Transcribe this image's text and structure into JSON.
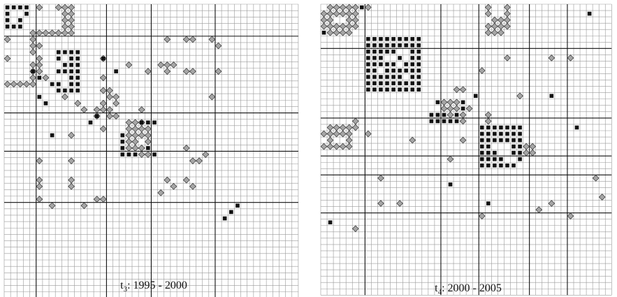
{
  "panels": [
    {
      "id": "t3",
      "label_main": "t",
      "label_sub": "3",
      "label_period": ": 1995 - 2000",
      "squares": [
        [
          0,
          0
        ],
        [
          0,
          1
        ],
        [
          0,
          2
        ],
        [
          0,
          3
        ],
        [
          1,
          0
        ],
        [
          1,
          3
        ],
        [
          2,
          0
        ],
        [
          2,
          2
        ],
        [
          3,
          0
        ],
        [
          3,
          1
        ],
        [
          3,
          2
        ],
        [
          7,
          8
        ],
        [
          7,
          9
        ],
        [
          7,
          10
        ],
        [
          7,
          11
        ],
        [
          8,
          8
        ],
        [
          8,
          10
        ],
        [
          8,
          11
        ],
        [
          9,
          9
        ],
        [
          9,
          10
        ],
        [
          9,
          11
        ],
        [
          10,
          8
        ],
        [
          10,
          9
        ],
        [
          10,
          10
        ],
        [
          10,
          11
        ],
        [
          11,
          10
        ],
        [
          11,
          11
        ],
        [
          12,
          8
        ],
        [
          12,
          10
        ],
        [
          12,
          11
        ],
        [
          13,
          8
        ],
        [
          13,
          9
        ],
        [
          13,
          10
        ],
        [
          13,
          11
        ],
        [
          10,
          4
        ],
        [
          11,
          5
        ],
        [
          12,
          7
        ],
        [
          14,
          5
        ],
        [
          15,
          6
        ],
        [
          18,
          21
        ],
        [
          18,
          22
        ],
        [
          18,
          23
        ],
        [
          20,
          18
        ],
        [
          21,
          18
        ],
        [
          22,
          18
        ],
        [
          23,
          18
        ],
        [
          23,
          19
        ],
        [
          23,
          20
        ],
        [
          22,
          22
        ],
        [
          23,
          23
        ],
        [
          31,
          36
        ],
        [
          32,
          35
        ],
        [
          33,
          34
        ],
        [
          10,
          17
        ],
        [
          17,
          14
        ],
        [
          18,
          13
        ],
        [
          20,
          7
        ],
        [
          8,
          15
        ]
      ],
      "diamonds": [
        [
          0,
          9
        ],
        [
          0,
          10
        ],
        [
          1,
          9
        ],
        [
          1,
          10
        ],
        [
          2,
          9
        ],
        [
          2,
          10
        ],
        [
          3,
          9
        ],
        [
          3,
          10
        ],
        [
          0,
          5
        ],
        [
          0,
          8
        ],
        [
          4,
          4
        ],
        [
          4,
          5
        ],
        [
          4,
          6
        ],
        [
          4,
          7
        ],
        [
          4,
          8
        ],
        [
          4,
          9
        ],
        [
          4,
          10
        ],
        [
          5,
          0
        ],
        [
          5,
          4
        ],
        [
          6,
          4
        ],
        [
          6,
          5
        ],
        [
          7,
          4
        ],
        [
          8,
          5
        ],
        [
          9,
          4
        ],
        [
          9,
          5
        ],
        [
          10,
          4
        ],
        [
          10,
          5
        ],
        [
          11,
          4
        ],
        [
          8,
          0
        ],
        [
          8,
          15
        ],
        [
          9,
          19
        ],
        [
          10,
          22
        ],
        [
          5,
          25
        ],
        [
          5,
          28
        ],
        [
          5,
          29
        ],
        [
          5,
          32
        ],
        [
          6,
          33
        ],
        [
          9,
          24
        ],
        [
          9,
          25
        ],
        [
          9,
          26
        ],
        [
          10,
          25
        ],
        [
          12,
          0
        ],
        [
          12,
          1
        ],
        [
          12,
          2
        ],
        [
          12,
          3
        ],
        [
          12,
          4
        ],
        [
          11,
          6
        ],
        [
          11,
          15
        ],
        [
          10,
          33
        ],
        [
          10,
          28
        ],
        [
          10,
          29
        ],
        [
          13,
          15
        ],
        [
          13,
          16
        ],
        [
          14,
          16
        ],
        [
          14,
          17
        ],
        [
          15,
          15
        ],
        [
          15,
          17
        ],
        [
          16,
          14
        ],
        [
          16,
          15
        ],
        [
          17,
          14
        ],
        [
          16,
          16
        ],
        [
          17,
          16
        ],
        [
          17,
          17
        ],
        [
          14,
          9
        ],
        [
          15,
          11
        ],
        [
          16,
          12
        ],
        [
          16,
          21
        ],
        [
          14,
          32
        ],
        [
          18,
          19
        ],
        [
          18,
          20
        ],
        [
          18,
          21
        ],
        [
          19,
          19
        ],
        [
          19,
          20
        ],
        [
          19,
          21
        ],
        [
          19,
          22
        ],
        [
          20,
          19
        ],
        [
          20,
          20
        ],
        [
          20,
          21
        ],
        [
          20,
          22
        ],
        [
          21,
          19
        ],
        [
          21,
          20
        ],
        [
          21,
          22
        ],
        [
          22,
          19
        ],
        [
          22,
          20
        ],
        [
          22,
          21
        ],
        [
          23,
          21
        ],
        [
          23,
          22
        ],
        [
          19,
          15
        ],
        [
          20,
          10
        ],
        [
          22,
          28
        ],
        [
          23,
          31
        ],
        [
          24,
          29
        ],
        [
          24,
          30
        ],
        [
          24,
          5
        ],
        [
          24,
          10
        ],
        [
          27,
          5
        ],
        [
          28,
          5
        ],
        [
          28,
          10
        ],
        [
          27,
          10
        ],
        [
          27,
          25
        ],
        [
          28,
          26
        ],
        [
          29,
          24
        ],
        [
          27,
          28
        ],
        [
          28,
          29
        ],
        [
          30,
          5
        ],
        [
          31,
          7
        ],
        [
          31,
          12
        ],
        [
          30,
          14
        ],
        [
          30,
          15
        ]
      ]
    },
    {
      "id": "t4",
      "label_main": "t",
      "label_sub": "4",
      "label_period": ": 2000 - 2005",
      "squares": [
        [
          0,
          6
        ],
        [
          4,
          0
        ],
        [
          5,
          7
        ],
        [
          5,
          8
        ],
        [
          5,
          9
        ],
        [
          5,
          10
        ],
        [
          5,
          11
        ],
        [
          5,
          12
        ],
        [
          5,
          13
        ],
        [
          5,
          14
        ],
        [
          5,
          15
        ],
        [
          6,
          7
        ],
        [
          6,
          8
        ],
        [
          6,
          9
        ],
        [
          6,
          10
        ],
        [
          6,
          11
        ],
        [
          6,
          12
        ],
        [
          6,
          13
        ],
        [
          6,
          14
        ],
        [
          6,
          15
        ],
        [
          7,
          7
        ],
        [
          7,
          8
        ],
        [
          7,
          9
        ],
        [
          7,
          10
        ],
        [
          7,
          11
        ],
        [
          7,
          14
        ],
        [
          7,
          15
        ],
        [
          8,
          7
        ],
        [
          8,
          8
        ],
        [
          8,
          9
        ],
        [
          8,
          12
        ],
        [
          8,
          14
        ],
        [
          8,
          15
        ],
        [
          9,
          7
        ],
        [
          9,
          8
        ],
        [
          9,
          9
        ],
        [
          9,
          10
        ],
        [
          9,
          11
        ],
        [
          9,
          13
        ],
        [
          9,
          14
        ],
        [
          9,
          15
        ],
        [
          10,
          7
        ],
        [
          10,
          8
        ],
        [
          10,
          10
        ],
        [
          10,
          11
        ],
        [
          10,
          12
        ],
        [
          10,
          13
        ],
        [
          10,
          14
        ],
        [
          10,
          15
        ],
        [
          11,
          7
        ],
        [
          11,
          8
        ],
        [
          11,
          9
        ],
        [
          11,
          10
        ],
        [
          11,
          11
        ],
        [
          11,
          12
        ],
        [
          11,
          14
        ],
        [
          11,
          15
        ],
        [
          12,
          7
        ],
        [
          12,
          8
        ],
        [
          12,
          9
        ],
        [
          12,
          10
        ],
        [
          12,
          11
        ],
        [
          12,
          12
        ],
        [
          12,
          13
        ],
        [
          12,
          14
        ],
        [
          12,
          15
        ],
        [
          13,
          7
        ],
        [
          13,
          8
        ],
        [
          13,
          9
        ],
        [
          13,
          10
        ],
        [
          13,
          11
        ],
        [
          13,
          12
        ],
        [
          13,
          13
        ],
        [
          13,
          14
        ],
        [
          13,
          15
        ],
        [
          14,
          24
        ],
        [
          15,
          18
        ],
        [
          15,
          22
        ],
        [
          16,
          22
        ],
        [
          17,
          17
        ],
        [
          17,
          18
        ],
        [
          17,
          19
        ],
        [
          17,
          21
        ],
        [
          18,
          17
        ],
        [
          18,
          18
        ],
        [
          18,
          19
        ],
        [
          18,
          20
        ],
        [
          18,
          21
        ],
        [
          19,
          25
        ],
        [
          19,
          26
        ],
        [
          19,
          27
        ],
        [
          19,
          28
        ],
        [
          19,
          29
        ],
        [
          19,
          30
        ],
        [
          19,
          31
        ],
        [
          20,
          25
        ],
        [
          20,
          26
        ],
        [
          20,
          27
        ],
        [
          20,
          28
        ],
        [
          20,
          29
        ],
        [
          20,
          30
        ],
        [
          20,
          31
        ],
        [
          21,
          25
        ],
        [
          21,
          26
        ],
        [
          21,
          27
        ],
        [
          21,
          28
        ],
        [
          21,
          29
        ],
        [
          21,
          30
        ],
        [
          21,
          31
        ],
        [
          22,
          25
        ],
        [
          22,
          26
        ],
        [
          22,
          30
        ],
        [
          22,
          31
        ],
        [
          23,
          25
        ],
        [
          23,
          26
        ],
        [
          23,
          27
        ],
        [
          23,
          30
        ],
        [
          23,
          31
        ],
        [
          24,
          25
        ],
        [
          24,
          26
        ],
        [
          24,
          27
        ],
        [
          24,
          28
        ],
        [
          24,
          31
        ],
        [
          25,
          25
        ],
        [
          25,
          26
        ],
        [
          25,
          27
        ],
        [
          25,
          28
        ],
        [
          25,
          29
        ],
        [
          25,
          30
        ],
        [
          1,
          42
        ],
        [
          14,
          36
        ],
        [
          19,
          40
        ],
        [
          28,
          20
        ],
        [
          31,
          26
        ],
        [
          34,
          1
        ]
      ],
      "diamonds": [
        [
          0,
          1
        ],
        [
          0,
          2
        ],
        [
          0,
          3
        ],
        [
          0,
          4
        ],
        [
          0,
          5
        ],
        [
          0,
          26
        ],
        [
          0,
          29
        ],
        [
          1,
          0
        ],
        [
          1,
          1
        ],
        [
          1,
          2
        ],
        [
          1,
          3
        ],
        [
          1,
          4
        ],
        [
          1,
          5
        ],
        [
          1,
          26
        ],
        [
          1,
          29
        ],
        [
          2,
          0
        ],
        [
          2,
          1
        ],
        [
          2,
          4
        ],
        [
          2,
          5
        ],
        [
          2,
          27
        ],
        [
          2,
          28
        ],
        [
          2,
          29
        ],
        [
          3,
          0
        ],
        [
          3,
          1
        ],
        [
          3,
          2
        ],
        [
          3,
          3
        ],
        [
          3,
          4
        ],
        [
          3,
          5
        ],
        [
          3,
          26
        ],
        [
          3,
          27
        ],
        [
          3,
          28
        ],
        [
          3,
          29
        ],
        [
          4,
          1
        ],
        [
          4,
          2
        ],
        [
          4,
          3
        ],
        [
          4,
          4
        ],
        [
          4,
          26
        ],
        [
          4,
          27
        ],
        [
          4,
          28
        ],
        [
          0,
          7
        ],
        [
          8,
          29
        ],
        [
          8,
          36
        ],
        [
          8,
          39
        ],
        [
          10,
          25
        ],
        [
          11,
          46
        ],
        [
          13,
          21
        ],
        [
          13,
          22
        ],
        [
          14,
          31
        ],
        [
          15,
          19
        ],
        [
          15,
          20
        ],
        [
          15,
          21
        ],
        [
          16,
          19
        ],
        [
          16,
          20
        ],
        [
          16,
          21
        ],
        [
          16,
          23
        ],
        [
          17,
          20
        ],
        [
          17,
          22
        ],
        [
          18,
          22
        ],
        [
          17,
          26
        ],
        [
          18,
          26
        ],
        [
          18,
          5
        ],
        [
          20,
          7
        ],
        [
          21,
          22
        ],
        [
          19,
          1
        ],
        [
          19,
          2
        ],
        [
          19,
          3
        ],
        [
          19,
          4
        ],
        [
          19,
          5
        ],
        [
          20,
          0
        ],
        [
          20,
          1
        ],
        [
          20,
          2
        ],
        [
          20,
          3
        ],
        [
          20,
          4
        ],
        [
          21,
          1
        ],
        [
          21,
          4
        ],
        [
          22,
          0
        ],
        [
          22,
          1
        ],
        [
          22,
          2
        ],
        [
          22,
          3
        ],
        [
          22,
          4
        ],
        [
          21,
          14
        ],
        [
          23,
          32
        ],
        [
          23,
          33
        ],
        [
          22,
          32
        ],
        [
          22,
          33
        ],
        [
          24,
          20
        ],
        [
          27,
          9
        ],
        [
          27,
          43
        ],
        [
          30,
          44
        ],
        [
          31,
          9
        ],
        [
          31,
          12
        ],
        [
          33,
          39
        ],
        [
          32,
          34
        ],
        [
          31,
          36
        ],
        [
          33,
          25
        ],
        [
          35,
          5
        ]
      ]
    }
  ]
}
